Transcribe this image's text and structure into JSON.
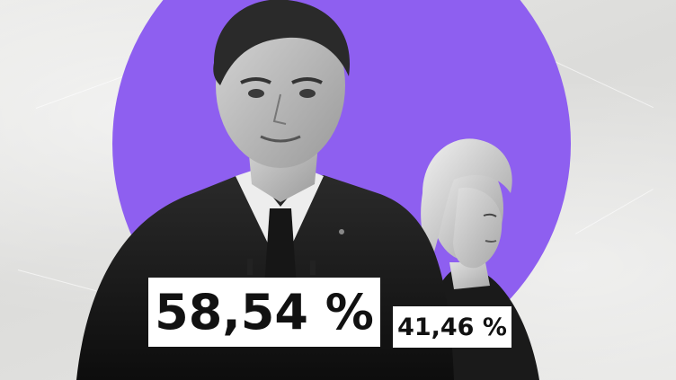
{
  "colors": {
    "background": "#e3e3e1",
    "accent_circle": "#8e5ff0",
    "label_bg": "#ffffff",
    "label_text": "#111111"
  },
  "results": {
    "winner_percent": "58,54 %",
    "runner_up_percent": "41,46 %"
  },
  "images": {
    "winner": "man-portrait-bw",
    "runner_up": "woman-portrait-bw"
  }
}
